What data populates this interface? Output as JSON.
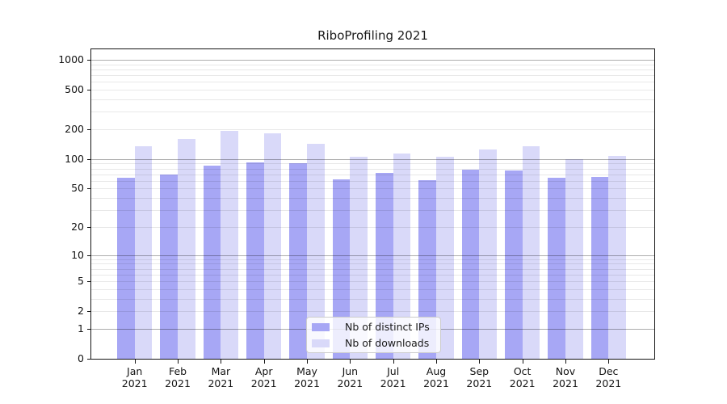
{
  "title": "RiboProfiling 2021",
  "colors": {
    "bar_distinct_ips": "#a7a7f5",
    "bar_downloads": "#d9d9f9",
    "major_gridline": "rgba(0,0,0,0.32)",
    "minor_gridline": "rgba(0,0,0,0.09)",
    "axis_frame": "#141414",
    "legend_border": "#cccccc",
    "legend_background": "rgba(255,255,255,0.8)"
  },
  "chart_data": {
    "type": "bar",
    "title": "RiboProfiling 2021",
    "x_categories": [
      "Jan 2021",
      "Feb 2021",
      "Mar 2021",
      "Apr 2021",
      "May 2021",
      "Jun 2021",
      "Jul 2021",
      "Aug 2021",
      "Sep 2021",
      "Oct 2021",
      "Nov 2021",
      "Dec 2021"
    ],
    "x_tick_month": [
      "Jan",
      "Feb",
      "Mar",
      "Apr",
      "May",
      "Jun",
      "Jul",
      "Aug",
      "Sep",
      "Oct",
      "Nov",
      "Dec"
    ],
    "x_tick_year": "2021",
    "series": [
      {
        "name": "Nb of distinct IPs",
        "color": "#a7a7f5",
        "values": [
          64,
          69,
          86,
          92,
          90,
          62,
          72,
          61,
          78,
          76,
          64,
          66
        ]
      },
      {
        "name": "Nb of downloads",
        "color": "#d9d9f9",
        "values": [
          134,
          160,
          193,
          182,
          142,
          106,
          114,
          106,
          125,
          135,
          100,
          108
        ]
      }
    ],
    "y_scale": "log(value+1)",
    "y_tick_labels": [
      1000,
      500,
      200,
      100,
      50,
      20,
      10,
      5,
      2,
      1,
      0
    ],
    "y_major_gridlines": [
      1,
      10,
      100,
      1000
    ],
    "y_minor_gridlines": [
      2,
      3,
      4,
      5,
      6,
      7,
      8,
      9,
      20,
      30,
      40,
      50,
      60,
      70,
      80,
      90,
      200,
      300,
      400,
      500,
      600,
      700,
      800,
      900
    ],
    "ylim": [
      0,
      1270
    ],
    "grid": true,
    "legend_position": "lower center"
  }
}
